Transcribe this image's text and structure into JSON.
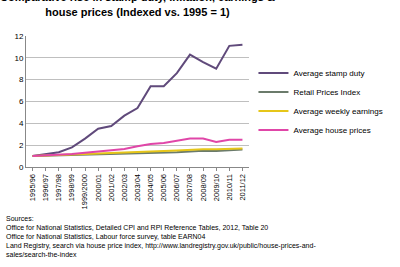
{
  "chart_data": {
    "type": "line",
    "title": [
      "Comparative rise in stamp duty, inflation, earnings &",
      "house prices (Indexed vs. 1995 = 1)"
    ],
    "categories": [
      "1995/96",
      "1996/97",
      "1997/98",
      "1998/99",
      "1999/2000",
      "2000/01",
      "2001/02",
      "2002/03",
      "2003/04",
      "2004/05",
      "2005/06",
      "2006/07",
      "2007/08",
      "2008/09",
      "2009/10",
      "2010/11",
      "2011/12"
    ],
    "series": [
      {
        "name": "Average stamp duty",
        "color": "#604a7b",
        "values": [
          1,
          1.2,
          1.35,
          1.8,
          2.6,
          3.5,
          3.75,
          4.7,
          5.4,
          7.4,
          7.4,
          8.6,
          10.3,
          9.6,
          9.0,
          11.1,
          11.2
        ]
      },
      {
        "name": "Retail Prices Index",
        "color": "#6b7b6b",
        "values": [
          1,
          1.03,
          1.06,
          1.1,
          1.12,
          1.15,
          1.18,
          1.2,
          1.24,
          1.28,
          1.32,
          1.36,
          1.42,
          1.48,
          1.46,
          1.52,
          1.6
        ]
      },
      {
        "name": "Average weekly earnings",
        "color": "#e6c619",
        "values": [
          1,
          1.04,
          1.08,
          1.12,
          1.17,
          1.22,
          1.27,
          1.32,
          1.36,
          1.41,
          1.46,
          1.52,
          1.58,
          1.62,
          1.63,
          1.66,
          1.7
        ]
      },
      {
        "name": "Average house prices",
        "color": "#e046a8",
        "values": [
          1,
          1.05,
          1.1,
          1.2,
          1.3,
          1.4,
          1.5,
          1.65,
          1.9,
          2.1,
          2.2,
          2.4,
          2.6,
          2.6,
          2.3,
          2.5,
          2.5
        ]
      }
    ],
    "ylim": [
      0,
      12
    ],
    "yticks": [
      0,
      2,
      4,
      6,
      8,
      10,
      12
    ],
    "grid": true,
    "legend": "right",
    "annotations": [
      "Sources:",
      "Office for National Statistics, Detailed CPI and RPI Reference Tables, 2012, Table 20",
      "Office for National Statistics, Labour force survey, table EARN04",
      "Land Registry, search via house price index, http://www.landregistry.gov.uk/public/house-prices-and-",
      "sales/search-the-index"
    ]
  }
}
